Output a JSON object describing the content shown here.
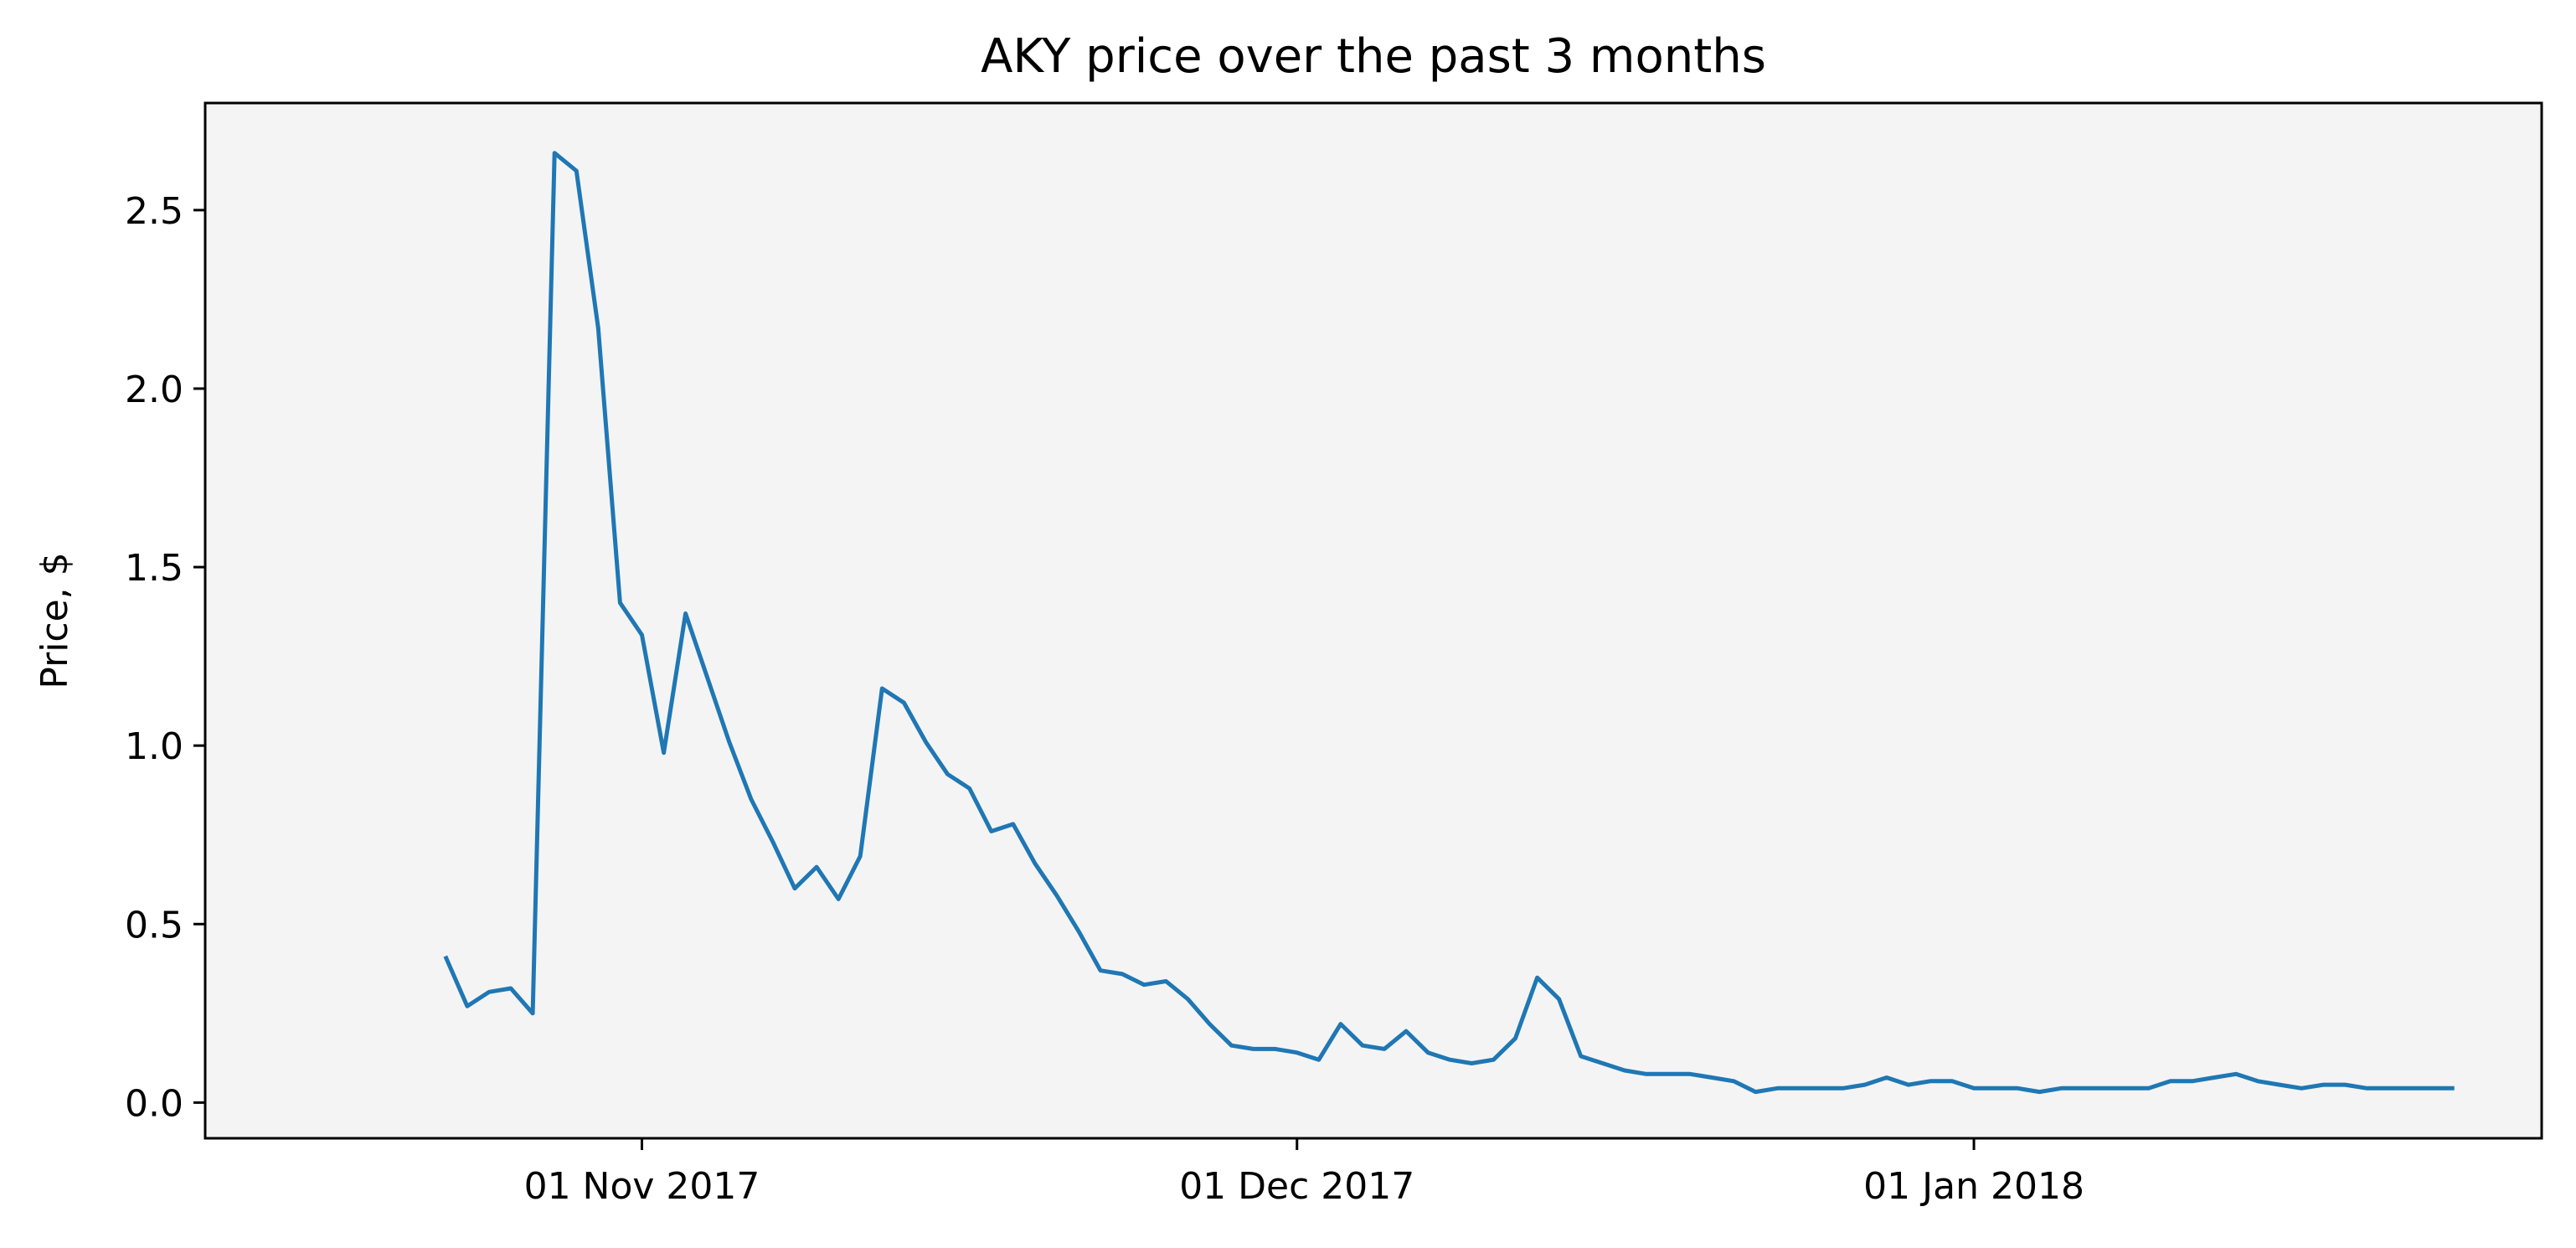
{
  "chart_data": {
    "type": "line",
    "title": "AKY price over the past 3 months",
    "xlabel": "",
    "ylabel": "Price, $",
    "ylim": [
      -0.1,
      2.8
    ],
    "xlim": [
      "2017-10-12",
      "2018-01-27"
    ],
    "yticks": [
      0.0,
      0.5,
      1.0,
      1.5,
      2.0,
      2.5
    ],
    "ytick_labels": [
      "0.0",
      "0.5",
      "1.0",
      "1.5",
      "2.0",
      "2.5"
    ],
    "xticks": [
      "2017-11-01",
      "2017-12-01",
      "2018-01-01"
    ],
    "xtick_labels": [
      "01 Nov 2017",
      "01 Dec 2017",
      "01 Jan 2018"
    ],
    "grid": false,
    "background_color": "#f4f4f4",
    "line_color": "#1f77b4",
    "series": [
      {
        "x": [
          "2017-10-23",
          "2017-10-24",
          "2017-10-25",
          "2017-10-26",
          "2017-10-27",
          "2017-10-28",
          "2017-10-29",
          "2017-10-30",
          "2017-10-31",
          "2017-11-01",
          "2017-11-02",
          "2017-11-03",
          "2017-11-04",
          "2017-11-05",
          "2017-11-06",
          "2017-11-07",
          "2017-11-08",
          "2017-11-09",
          "2017-11-10",
          "2017-11-11",
          "2017-11-12",
          "2017-11-13",
          "2017-11-14",
          "2017-11-15",
          "2017-11-16",
          "2017-11-17",
          "2017-11-18",
          "2017-11-19",
          "2017-11-20",
          "2017-11-21",
          "2017-11-22",
          "2017-11-23",
          "2017-11-24",
          "2017-11-25",
          "2017-11-26",
          "2017-11-27",
          "2017-11-28",
          "2017-11-29",
          "2017-11-30",
          "2017-12-01",
          "2017-12-02",
          "2017-12-03",
          "2017-12-04",
          "2017-12-05",
          "2017-12-06",
          "2017-12-07",
          "2017-12-08",
          "2017-12-09",
          "2017-12-10",
          "2017-12-11",
          "2017-12-12",
          "2017-12-13",
          "2017-12-14",
          "2017-12-15",
          "2017-12-16",
          "2017-12-17",
          "2017-12-18",
          "2017-12-19",
          "2017-12-20",
          "2017-12-21",
          "2017-12-22",
          "2017-12-23",
          "2017-12-24",
          "2017-12-25",
          "2017-12-26",
          "2017-12-27",
          "2017-12-28",
          "2017-12-29",
          "2017-12-30",
          "2017-12-31",
          "2018-01-01",
          "2018-01-02",
          "2018-01-03",
          "2018-01-04",
          "2018-01-05",
          "2018-01-06",
          "2018-01-07",
          "2018-01-08",
          "2018-01-09",
          "2018-01-10",
          "2018-01-11",
          "2018-01-12",
          "2018-01-13",
          "2018-01-14",
          "2018-01-15",
          "2018-01-16",
          "2018-01-17",
          "2018-01-18",
          "2018-01-19",
          "2018-01-20",
          "2018-01-21",
          "2018-01-22",
          "2018-01-23"
        ],
        "values": [
          0.41,
          0.27,
          0.31,
          0.32,
          0.25,
          2.66,
          2.61,
          2.17,
          1.4,
          1.31,
          0.98,
          1.37,
          1.19,
          1.01,
          0.85,
          0.73,
          0.6,
          0.66,
          0.57,
          0.69,
          1.16,
          1.12,
          1.01,
          0.92,
          0.88,
          0.76,
          0.78,
          0.67,
          0.58,
          0.48,
          0.37,
          0.36,
          0.33,
          0.34,
          0.29,
          0.22,
          0.16,
          0.15,
          0.15,
          0.14,
          0.12,
          0.22,
          0.16,
          0.15,
          0.2,
          0.14,
          0.12,
          0.11,
          0.12,
          0.18,
          0.35,
          0.29,
          0.13,
          0.11,
          0.09,
          0.08,
          0.08,
          0.08,
          0.07,
          0.06,
          0.03,
          0.04,
          0.04,
          0.04,
          0.04,
          0.05,
          0.07,
          0.05,
          0.06,
          0.06,
          0.04,
          0.04,
          0.04,
          0.03,
          0.04,
          0.04,
          0.04,
          0.04,
          0.04,
          0.06,
          0.06,
          0.07,
          0.08,
          0.06,
          0.05,
          0.04,
          0.05,
          0.05,
          0.04,
          0.04,
          0.04,
          0.04,
          0.04
        ]
      }
    ]
  }
}
